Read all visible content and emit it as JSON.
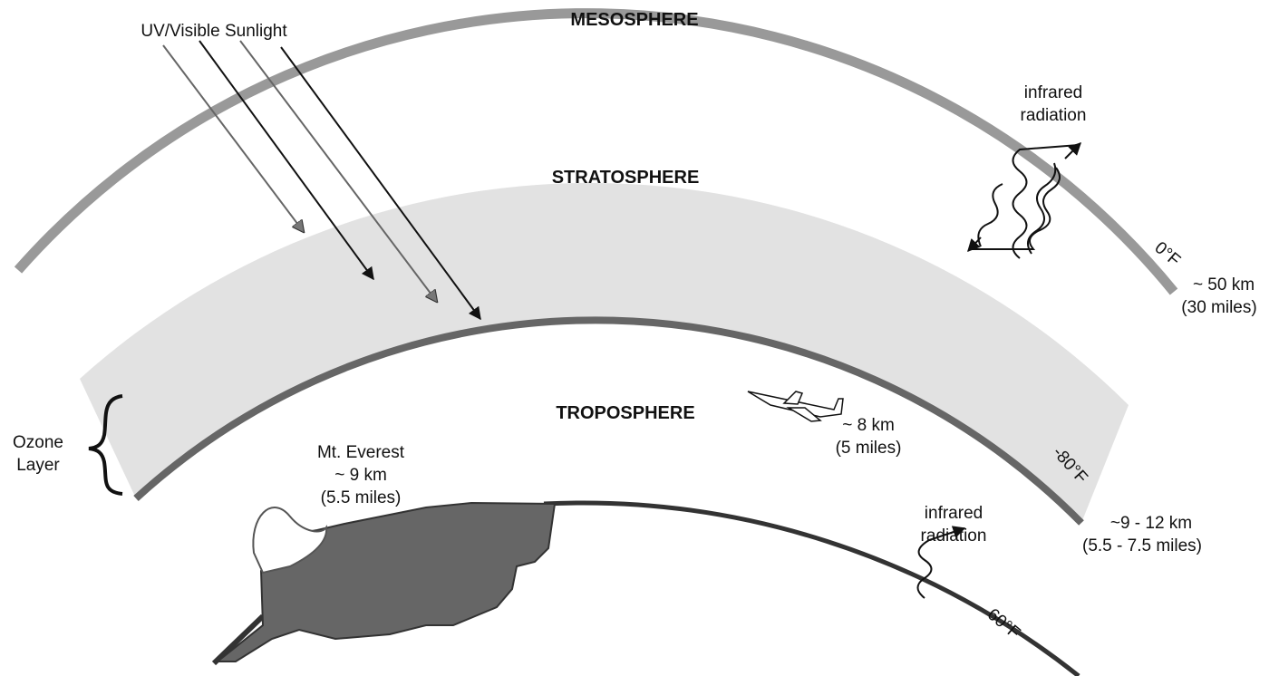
{
  "layers": {
    "mesosphere": "MESOSPHERE",
    "stratosphere": "STRATOSPHERE",
    "troposphere": "TROPOSPHERE"
  },
  "sunlight": "UV/Visible Sunlight",
  "infrared_upper": [
    "infrared",
    "radiation"
  ],
  "infrared_lower": [
    "infrared",
    "radiation"
  ],
  "mesosphere_boundary": {
    "temperature": "0°F",
    "height": [
      "~ 50 km",
      "(30 miles)"
    ]
  },
  "tropopause": {
    "temperature": "-80°F",
    "height": [
      "~9 - 12 km",
      "(5.5 - 7.5 miles)"
    ]
  },
  "ground": {
    "temperature": "60°F"
  },
  "airplane": [
    "~ 8 km",
    "(5 miles)"
  ],
  "everest": [
    "Mt. Everest",
    "~ 9 km",
    "(5.5 miles)"
  ],
  "ozone": [
    "Ozone",
    "Layer"
  ]
}
